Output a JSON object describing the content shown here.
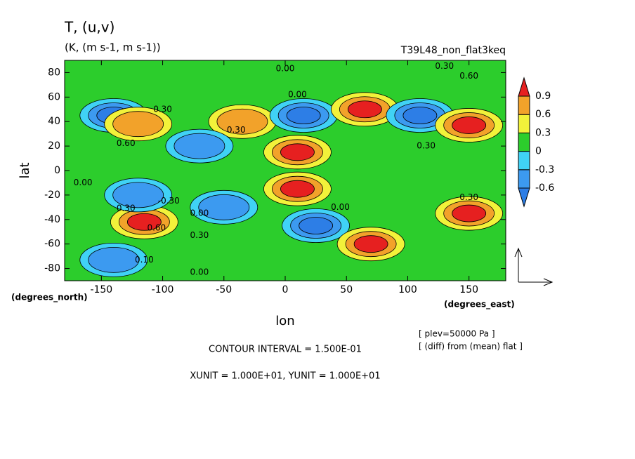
{
  "chart_data": {
    "type": "contour",
    "title": "T, (u,v)",
    "subtitle": "(K, (m s-1, m s-1))",
    "run_label": "T39L48_non_flat3keq",
    "x_label": "lon",
    "y_label": "lat",
    "x_unit": "(degrees_east)",
    "y_unit": "(degrees_north)",
    "notes": [
      "[ plev=50000 Pa ]",
      "[ (diff) from (mean) flat ]"
    ],
    "footer": [
      "CONTOUR INTERVAL = 1.500E-01",
      "XUNIT = 1.000E+01, YUNIT = 1.000E+01"
    ],
    "xlim": [
      -180,
      180
    ],
    "ylim": [
      -90,
      90
    ],
    "xticks": [
      -150,
      -100,
      -50,
      0,
      50,
      100,
      150
    ],
    "yticks": [
      -80,
      -60,
      -40,
      -20,
      0,
      20,
      40,
      60,
      80
    ],
    "levels": [
      -0.6,
      -0.3,
      0,
      0.3,
      0.6,
      0.9
    ],
    "colors": [
      "#2d7ee6",
      "#3c9af0",
      "#40d2f5",
      "#2ccd2c",
      "#f2f23a",
      "#f2a22a",
      "#e62020"
    ],
    "x": [
      -140,
      -120,
      -35,
      -70,
      15,
      10,
      10,
      65,
      110,
      150,
      -115,
      -50,
      25,
      70,
      150,
      -140,
      -120
    ],
    "y": [
      45,
      38,
      40,
      20,
      45,
      15,
      -15,
      50,
      45,
      37,
      -42,
      -30,
      -45,
      -60,
      -35,
      -73,
      -20
    ],
    "values": [
      -0.6,
      0.6,
      0.6,
      -0.3,
      -0.6,
      0.9,
      0.9,
      0.9,
      -0.6,
      0.9,
      0.9,
      -0.3,
      -0.6,
      0.9,
      0.9,
      -0.3,
      -0.3
    ],
    "annotations": [
      {
        "text": "0.00",
        "x": 0,
        "y": 83
      },
      {
        "text": "0.30",
        "x": 130,
        "y": 85
      },
      {
        "text": "0.60",
        "x": 150,
        "y": 77
      },
      {
        "text": "0.00",
        "x": 10,
        "y": 62
      },
      {
        "text": "0.30",
        "x": -100,
        "y": 50
      },
      {
        "text": "0.30",
        "x": -40,
        "y": 33
      },
      {
        "text": "0.60",
        "x": -130,
        "y": 22
      },
      {
        "text": "0.30",
        "x": 115,
        "y": 20
      },
      {
        "text": "0.00",
        "x": -165,
        "y": -10
      },
      {
        "text": "-0.30",
        "x": -95,
        "y": -25
      },
      {
        "text": "0.30",
        "x": -130,
        "y": -31
      },
      {
        "text": "0.60",
        "x": -105,
        "y": -47
      },
      {
        "text": "0.00",
        "x": -70,
        "y": -35
      },
      {
        "text": "0.30",
        "x": -70,
        "y": -53
      },
      {
        "text": "0.00",
        "x": 45,
        "y": -30
      },
      {
        "text": "0.10",
        "x": -115,
        "y": -73
      },
      {
        "text": "0.00",
        "x": -70,
        "y": -83
      },
      {
        "text": "0.30",
        "x": 150,
        "y": -22
      }
    ]
  }
}
